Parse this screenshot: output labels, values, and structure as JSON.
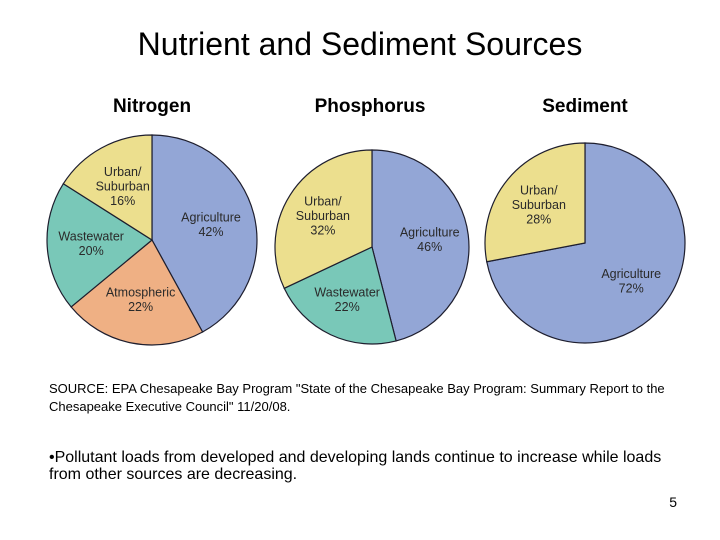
{
  "slide": {
    "title": "Nutrient and Sediment Sources",
    "source": "SOURCE: EPA Chesapeake Bay Program \"State of the Chesapeake Bay Program: Summary Report to the Chesapeake Executive Council\" 11/20/08.",
    "bullet": "•Pollutant loads from developed and developing lands continue to increase while loads from other sources are decreasing.",
    "page_number": "5"
  },
  "colors": {
    "Agriculture": "#93a6d6",
    "Urban/Suburban": "#ecdf8e",
    "Wastewater": "#79c8b8",
    "Atmospheric": "#efb084"
  },
  "chart_data": [
    {
      "type": "pie",
      "title": "Nitrogen",
      "slices": [
        {
          "label": "Agriculture",
          "value": 42
        },
        {
          "label": "Atmospheric",
          "value": 22
        },
        {
          "label": "Wastewater",
          "value": 20
        },
        {
          "label": "Urban/ Suburban",
          "value": 16
        }
      ]
    },
    {
      "type": "pie",
      "title": "Phosphorus",
      "slices": [
        {
          "label": "Agriculture",
          "value": 46
        },
        {
          "label": "Wastewater",
          "value": 22
        },
        {
          "label": "Urban/ Suburban",
          "value": 32
        }
      ]
    },
    {
      "type": "pie",
      "title": "Sediment",
      "slices": [
        {
          "label": "Agriculture",
          "value": 72
        },
        {
          "label": "Urban/ Suburban",
          "value": 28
        }
      ]
    }
  ]
}
